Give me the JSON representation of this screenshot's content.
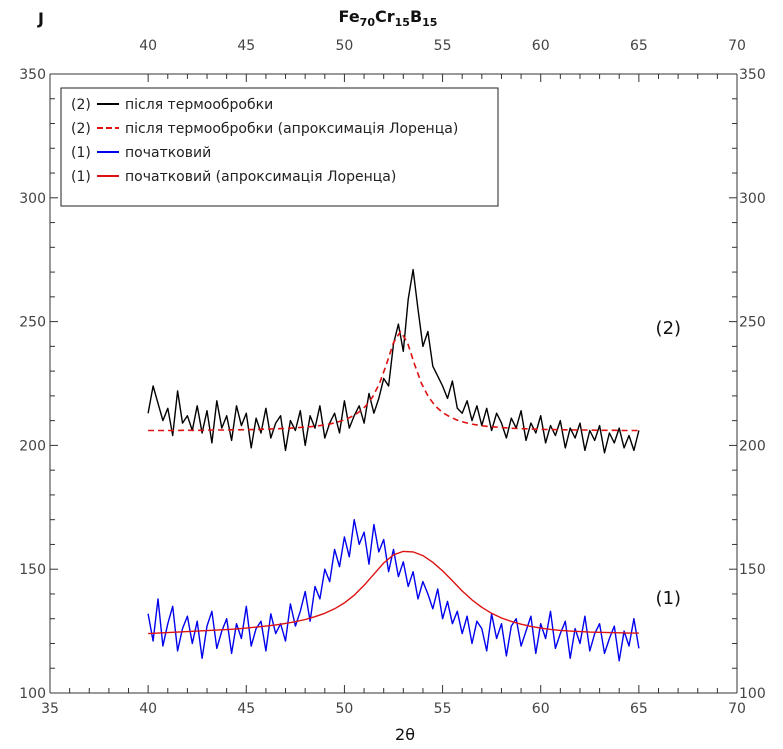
{
  "chart_data": {
    "type": "line",
    "title": "Fe",
    "title_parts": [
      {
        "text": "Fe",
        "sub": false
      },
      {
        "text": "70",
        "sub": true
      },
      {
        "text": "Cr",
        "sub": false
      },
      {
        "text": "15",
        "sub": true
      },
      {
        "text": "B",
        "sub": false
      },
      {
        "text": "15",
        "sub": true
      }
    ],
    "ylabel": "J",
    "xlabel": "2θ",
    "xlim": [
      35,
      70
    ],
    "ylim": [
      100,
      350
    ],
    "x_ticks": [
      35,
      40,
      45,
      50,
      55,
      60,
      65,
      70
    ],
    "x_top_ticks": [
      40,
      45,
      50,
      55,
      60,
      65,
      70
    ],
    "y_ticks": [
      100,
      150,
      200,
      250,
      300,
      350
    ],
    "grid": false,
    "legend_position": "top-left",
    "legend": [
      {
        "marker": "(2)",
        "label": "після термообробки",
        "color": "#000000",
        "style": "solid"
      },
      {
        "marker": "(2)",
        "label": "після термообробки (апроксимація Лоренца)",
        "color": "#dd1111",
        "style": "dashed"
      },
      {
        "marker": "(1)",
        "label": "початковий",
        "color": "#0000ee",
        "style": "solid"
      },
      {
        "marker": "(1)",
        "label": "початковий (апроксимація Лоренца)",
        "color": "#dd1111",
        "style": "solid"
      }
    ],
    "annotations": [
      {
        "text": "(2)",
        "x": 66.5,
        "y": 245
      },
      {
        "text": "(1)",
        "x": 66.5,
        "y": 136
      }
    ],
    "series": [
      {
        "name": "після термообробки",
        "color": "#000000",
        "style": "solid",
        "x_range": [
          40,
          65
        ],
        "y": [
          213,
          224,
          217,
          210,
          215,
          204,
          222,
          209,
          212,
          206,
          216,
          205,
          214,
          201,
          218,
          207,
          212,
          202,
          216,
          208,
          213,
          199,
          211,
          205,
          215,
          203,
          209,
          212,
          198,
          210,
          206,
          214,
          200,
          212,
          207,
          216,
          203,
          209,
          213,
          205,
          218,
          207,
          212,
          216,
          209,
          221,
          213,
          219,
          227,
          224,
          241,
          249,
          238,
          259,
          271,
          255,
          240,
          246,
          232,
          228,
          224,
          219,
          226,
          215,
          213,
          218,
          210,
          216,
          208,
          215,
          206,
          213,
          209,
          203,
          211,
          207,
          214,
          202,
          209,
          205,
          212,
          201,
          208,
          204,
          210,
          199,
          207,
          203,
          209,
          198,
          206,
          202,
          208,
          197,
          205,
          201,
          207,
          199,
          204,
          198,
          206
        ]
      },
      {
        "name": "після термообробки (апроксимація Лоренца)",
        "color": "#dd1111",
        "style": "dashed",
        "x_range": [
          40,
          65
        ],
        "y": [
          206,
          206,
          206,
          206,
          206,
          206.1,
          206.1,
          206.1,
          206.1,
          206.2,
          206.2,
          206.2,
          206.3,
          206.3,
          206.4,
          206.4,
          206.5,
          206.6,
          206.7,
          206.8,
          206.9,
          207.1,
          207.3,
          207.5,
          207.8,
          208.2,
          208.7,
          209.4,
          210.3,
          211.6,
          213.3,
          215.8,
          219.5,
          225,
          232.8,
          241.5,
          246,
          241.5,
          232.8,
          225,
          219.5,
          215.8,
          213.3,
          211.6,
          210.3,
          209.4,
          208.7,
          208.2,
          207.8,
          207.5,
          207.3,
          207.1,
          206.9,
          206.8,
          206.7,
          206.6,
          206.5,
          206.4,
          206.4,
          206.3,
          206.3,
          206.2,
          206.2,
          206.2,
          206.1,
          206.1,
          206.1,
          206.1,
          206,
          206,
          206
        ]
      },
      {
        "name": "початковий",
        "color": "#0000ee",
        "style": "solid",
        "x_range": [
          40,
          65
        ],
        "y": [
          132,
          121,
          138,
          119,
          128,
          135,
          117,
          126,
          131,
          120,
          129,
          114,
          127,
          133,
          118,
          125,
          130,
          116,
          128,
          122,
          135,
          119,
          126,
          129,
          117,
          132,
          124,
          128,
          121,
          136,
          127,
          133,
          141,
          129,
          143,
          138,
          150,
          145,
          158,
          151,
          163,
          155,
          170,
          160,
          165,
          152,
          168,
          157,
          162,
          149,
          158,
          147,
          153,
          143,
          149,
          138,
          145,
          140,
          134,
          142,
          130,
          137,
          128,
          133,
          124,
          131,
          120,
          129,
          126,
          117,
          132,
          122,
          128,
          115,
          127,
          130,
          119,
          125,
          131,
          116,
          128,
          122,
          133,
          118,
          124,
          129,
          114,
          126,
          120,
          131,
          117,
          124,
          128,
          116,
          122,
          127,
          113,
          125,
          119,
          130,
          118
        ]
      },
      {
        "name": "початковий (апроксимація Лоренца)",
        "color": "#dd1111",
        "style": "solid",
        "x_range": [
          40,
          65
        ],
        "y": [
          124,
          124.2,
          124.4,
          124.6,
          124.8,
          125,
          125.2,
          125.4,
          125.6,
          125.9,
          126.2,
          126.6,
          127,
          127.5,
          128.1,
          128.8,
          129.7,
          130.8,
          132.2,
          134,
          136.4,
          139.5,
          143.5,
          148,
          152.5,
          155.8,
          157.2,
          157,
          155.5,
          152.8,
          149.3,
          145.3,
          141.2,
          137.6,
          134.6,
          132.2,
          130.3,
          128.9,
          127.8,
          126.9,
          126.2,
          125.7,
          125.3,
          125,
          124.8,
          124.6,
          124.5,
          124.4,
          124.3,
          124.2,
          124.2
        ]
      }
    ]
  }
}
